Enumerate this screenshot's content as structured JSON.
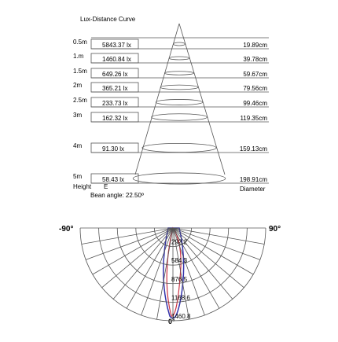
{
  "lux_table": {
    "title": "Lux-Distance Curve",
    "rows": [
      {
        "height": "0.5m",
        "lux": "5843.37 lx",
        "diameter": "19.89cm"
      },
      {
        "height": "1.m",
        "lux": "1460.84 lx",
        "diameter": "39.78cm"
      },
      {
        "height": "1.5m",
        "lux": "649.26 lx",
        "diameter": "59.67cm"
      },
      {
        "height": "2m",
        "lux": "365.21 lx",
        "diameter": "79.56cm"
      },
      {
        "height": "2.5m",
        "lux": "233.73 lx",
        "diameter": "99.46cm"
      },
      {
        "height": "3m",
        "lux": "162.32 lx",
        "diameter": "119.35cm"
      },
      {
        "height": "4m",
        "lux": "91.30 lx",
        "diameter": "159.13cm"
      },
      {
        "height": "5m",
        "lux": "58.43 lx",
        "diameter": "198.91cm"
      }
    ],
    "height_label": "Height",
    "lux_label": "E",
    "diameter_label": "Diameter",
    "beam_angle": "Bean angle: 22.50º"
  },
  "polar": {
    "left_label": "-90°",
    "right_label": "90°",
    "bottom_label": "0°",
    "ring_labels": [
      "292.2",
      "584.3",
      "876.5",
      "1168.6",
      "1460.8"
    ]
  }
}
